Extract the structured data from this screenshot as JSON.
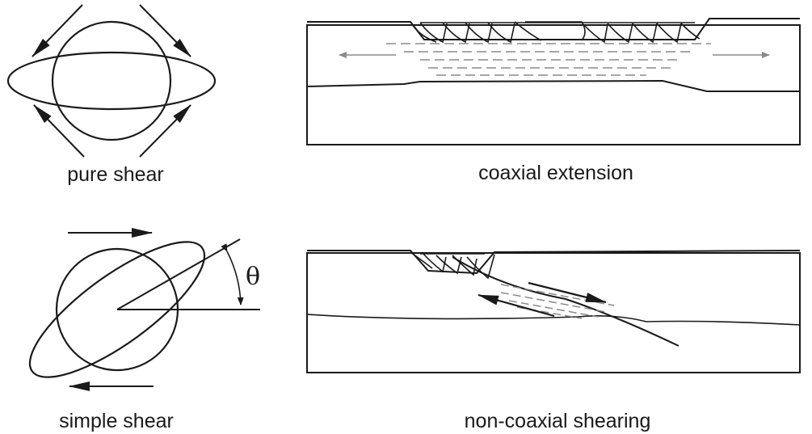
{
  "panels": {
    "pure_shear": {
      "caption": "pure shear"
    },
    "coaxial": {
      "caption": "coaxial extension"
    },
    "simple_shear": {
      "caption": "simple shear",
      "angle_symbol": "θ"
    },
    "noncoaxial": {
      "caption": "non-coaxial shearing"
    }
  },
  "colors": {
    "ink": "#1a1a1a",
    "faint": "#8a8a8a",
    "background": "#ffffff"
  }
}
